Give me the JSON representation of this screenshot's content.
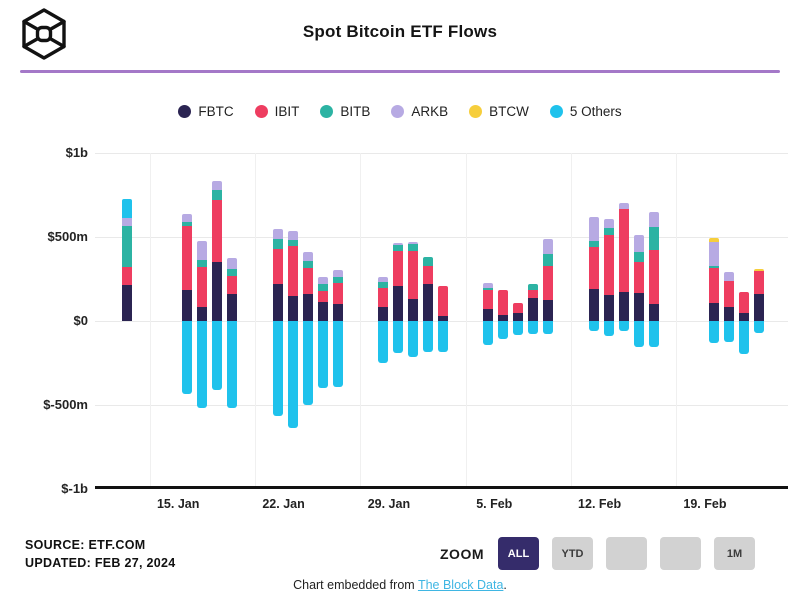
{
  "header": {
    "title": "Spot Bitcoin ETF Flows"
  },
  "legend": [
    {
      "label": "FBTC",
      "color": "#2b2452"
    },
    {
      "label": "IBIT",
      "color": "#ee3d60"
    },
    {
      "label": "BITB",
      "color": "#2cb3a3"
    },
    {
      "label": "ARKB",
      "color": "#b7aae3"
    },
    {
      "label": "BTCW",
      "color": "#f6ce3c"
    },
    {
      "label": "5 Others",
      "color": "#1fc2ec"
    }
  ],
  "chart_data": {
    "type": "bar",
    "stacked": true,
    "title": "Spot Bitcoin ETF Flows",
    "unit_note": "daily net flows in $ millions, estimated from chart",
    "ylim": [
      -1000,
      1000
    ],
    "grid": true,
    "y_ticks": [
      {
        "label": "$1b",
        "value": 1000
      },
      {
        "label": "$500m",
        "value": 500
      },
      {
        "label": "$0",
        "value": 0
      },
      {
        "label": "$-500m",
        "value": -500
      },
      {
        "label": "$-1b",
        "value": -1000
      }
    ],
    "x_ticks": [
      {
        "label": "15. Jan",
        "day": 4
      },
      {
        "label": "22. Jan",
        "day": 11
      },
      {
        "label": "29. Jan",
        "day": 18
      },
      {
        "label": "5. Feb",
        "day": 25
      },
      {
        "label": "12. Feb",
        "day": 32
      },
      {
        "label": "19. Feb",
        "day": 39
      }
    ],
    "weekend_gridline_days": [
      2.5,
      9.5,
      16.5,
      23.5,
      30.5,
      37.5
    ],
    "series": [
      {
        "key": "fbtc",
        "name": "FBTC",
        "color": "#2b2452"
      },
      {
        "key": "ibit",
        "name": "IBIT",
        "color": "#ee3d60"
      },
      {
        "key": "bitb",
        "name": "BITB",
        "color": "#2cb3a3"
      },
      {
        "key": "arkb",
        "name": "ARKB",
        "color": "#b7aae3"
      },
      {
        "key": "btcw",
        "name": "BTCW",
        "color": "#f6ce3c"
      },
      {
        "key": "others",
        "name": "5 Others",
        "color": "#1fc2ec"
      }
    ],
    "bars": [
      {
        "date": "Jan 12",
        "day": 1,
        "fbtc": 215,
        "ibit": 105,
        "bitb": 245,
        "arkb": 50,
        "btcw": 0,
        "others": 110
      },
      {
        "date": "Jan 16",
        "day": 5,
        "fbtc": 185,
        "ibit": 380,
        "bitb": 25,
        "arkb": 45,
        "btcw": 0,
        "others": -435
      },
      {
        "date": "Jan 17",
        "day": 6,
        "fbtc": 85,
        "ibit": 235,
        "bitb": 45,
        "arkb": 110,
        "btcw": 0,
        "others": -520
      },
      {
        "date": "Jan 18",
        "day": 7,
        "fbtc": 350,
        "ibit": 370,
        "bitb": 60,
        "arkb": 55,
        "btcw": 0,
        "others": -410
      },
      {
        "date": "Jan 19",
        "day": 8,
        "fbtc": 160,
        "ibit": 110,
        "bitb": 40,
        "arkb": 65,
        "btcw": 0,
        "others": -515
      },
      {
        "date": "Jan 22",
        "day": 11,
        "fbtc": 220,
        "ibit": 210,
        "bitb": 60,
        "arkb": 55,
        "btcw": 0,
        "others": -565
      },
      {
        "date": "Jan 23",
        "day": 12,
        "fbtc": 150,
        "ibit": 295,
        "bitb": 40,
        "arkb": 50,
        "btcw": 0,
        "others": -635
      },
      {
        "date": "Jan 24",
        "day": 13,
        "fbtc": 160,
        "ibit": 155,
        "bitb": 45,
        "arkb": 50,
        "btcw": 0,
        "others": -500
      },
      {
        "date": "Jan 25",
        "day": 14,
        "fbtc": 115,
        "ibit": 65,
        "bitb": 40,
        "arkb": 40,
        "btcw": 0,
        "others": -400
      },
      {
        "date": "Jan 26",
        "day": 15,
        "fbtc": 100,
        "ibit": 125,
        "bitb": 35,
        "arkb": 45,
        "btcw": 0,
        "others": -395
      },
      {
        "date": "Jan 29",
        "day": 18,
        "fbtc": 85,
        "ibit": 110,
        "bitb": 35,
        "arkb": 30,
        "btcw": 0,
        "others": -250
      },
      {
        "date": "Jan 30",
        "day": 19,
        "fbtc": 210,
        "ibit": 205,
        "bitb": 40,
        "arkb": 10,
        "btcw": 0,
        "others": -190
      },
      {
        "date": "Jan 31",
        "day": 20,
        "fbtc": 130,
        "ibit": 285,
        "bitb": 45,
        "arkb": 10,
        "btcw": 0,
        "others": -215
      },
      {
        "date": "Feb 1",
        "day": 21,
        "fbtc": 220,
        "ibit": 105,
        "bitb": 55,
        "arkb": 0,
        "btcw": 0,
        "others": -185
      },
      {
        "date": "Feb 2",
        "day": 22,
        "fbtc": 30,
        "ibit": 180,
        "bitb": 0,
        "arkb": 0,
        "btcw": 0,
        "others": -185
      },
      {
        "date": "Feb 5",
        "day": 25,
        "fbtc": 70,
        "ibit": 115,
        "bitb": 10,
        "arkb": 30,
        "btcw": 0,
        "others": -145
      },
      {
        "date": "Feb 6",
        "day": 26,
        "fbtc": 35,
        "ibit": 150,
        "bitb": 0,
        "arkb": 0,
        "btcw": 0,
        "others": -110
      },
      {
        "date": "Feb 7",
        "day": 27,
        "fbtc": 45,
        "ibit": 60,
        "bitb": 0,
        "arkb": 0,
        "btcw": 0,
        "others": -85
      },
      {
        "date": "Feb 8",
        "day": 28,
        "fbtc": 135,
        "ibit": 50,
        "bitb": 35,
        "arkb": 0,
        "btcw": 0,
        "others": -75
      },
      {
        "date": "Feb 9",
        "day": 29,
        "fbtc": 125,
        "ibit": 200,
        "bitb": 75,
        "arkb": 90,
        "btcw": 0,
        "others": -75
      },
      {
        "date": "Feb 12",
        "day": 32,
        "fbtc": 190,
        "ibit": 250,
        "bitb": 35,
        "arkb": 145,
        "btcw": 0,
        "others": -60
      },
      {
        "date": "Feb 13",
        "day": 33,
        "fbtc": 155,
        "ibit": 355,
        "bitb": 45,
        "arkb": 55,
        "btcw": 0,
        "others": -90
      },
      {
        "date": "Feb 14",
        "day": 34,
        "fbtc": 170,
        "ibit": 495,
        "bitb": 0,
        "arkb": 35,
        "btcw": 0,
        "others": -60
      },
      {
        "date": "Feb 15",
        "day": 35,
        "fbtc": 165,
        "ibit": 185,
        "bitb": 60,
        "arkb": 100,
        "btcw": 0,
        "others": -155
      },
      {
        "date": "Feb 16",
        "day": 36,
        "fbtc": 100,
        "ibit": 325,
        "bitb": 135,
        "arkb": 90,
        "btcw": 0,
        "others": -155
      },
      {
        "date": "Feb 20",
        "day": 40,
        "fbtc": 110,
        "ibit": 205,
        "bitb": 15,
        "arkb": 140,
        "btcw": 25,
        "others": -130
      },
      {
        "date": "Feb 21",
        "day": 41,
        "fbtc": 85,
        "ibit": 155,
        "bitb": 0,
        "arkb": 50,
        "btcw": 0,
        "others": -125
      },
      {
        "date": "Feb 22",
        "day": 42,
        "fbtc": 50,
        "ibit": 120,
        "bitb": 0,
        "arkb": 0,
        "btcw": 0,
        "others": -195
      },
      {
        "date": "Feb 23",
        "day": 43,
        "fbtc": 160,
        "ibit": 135,
        "bitb": 0,
        "arkb": 0,
        "btcw": 15,
        "others": -70
      }
    ]
  },
  "source": {
    "line1": "SOURCE: ETF.COM",
    "line2": "UPDATED: FEB 27, 2024"
  },
  "zoom_controls": {
    "label": "ZOOM",
    "buttons": [
      {
        "label": "ALL",
        "active": true
      },
      {
        "label": "YTD",
        "active": false
      },
      {
        "label": "",
        "active": false
      },
      {
        "label": "",
        "active": false
      },
      {
        "label": "1M",
        "active": false
      }
    ]
  },
  "embed": {
    "prefix": "Chart embedded from ",
    "link_text": "The Block Data",
    "suffix": ".",
    "link_color": "#3fb6e3"
  }
}
